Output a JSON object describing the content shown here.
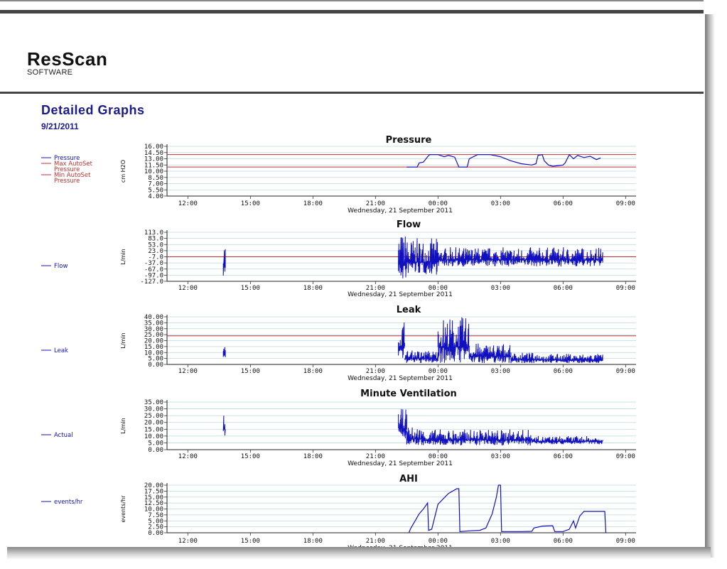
{
  "brand": {
    "name": "ResScan",
    "sub": "SOFTWARE"
  },
  "report": {
    "title": "Detailed Graphs",
    "date": "9/21/2011"
  },
  "x_axis": {
    "ticks": [
      "12:00",
      "15:00",
      "18:00",
      "21:00",
      "00:00",
      "03:00",
      "06:00",
      "09:00"
    ],
    "caption": "Wednesday, 21 September 2011"
  },
  "colors": {
    "series": "#1010c0",
    "reference": "#c03030",
    "grid": "#b8d8e0",
    "title": "#1a1a8c"
  },
  "chart_data": [
    {
      "type": "line",
      "title": "Pressure",
      "ylabel": "cm H2O",
      "ylim": [
        4.0,
        16.0
      ],
      "yticks": [
        "16.00",
        "14.50",
        "13.00",
        "11.50",
        "10.00",
        "8.50",
        "7.00",
        "5.50",
        "4.00"
      ],
      "xlim_hours": [
        11,
        28.5
      ],
      "legend": [
        {
          "label": "Pressure",
          "color": "#1010c0"
        },
        {
          "label": "Max AutoSet Pressure",
          "color": "#c03030"
        },
        {
          "label": "Min AutoSet Pressure",
          "color": "#c03030"
        }
      ],
      "reference_lines": [
        14.0,
        11.0
      ],
      "series": [
        {
          "name": "Pressure",
          "segments": [
            [
              [
                22.5,
                11.0
              ],
              [
                23.0,
                11.0
              ],
              [
                23.1,
                12.0
              ],
              [
                23.3,
                12.2
              ],
              [
                23.5,
                13.5
              ],
              [
                23.6,
                14.0
              ],
              [
                24.0,
                14.0
              ],
              [
                24.3,
                13.5
              ],
              [
                24.5,
                13.8
              ],
              [
                24.8,
                13.4
              ],
              [
                25.0,
                11.0
              ],
              [
                25.4,
                11.0
              ],
              [
                25.5,
                13.0
              ],
              [
                25.7,
                13.5
              ],
              [
                25.9,
                14.0
              ],
              [
                26.5,
                14.0
              ],
              [
                27.0,
                13.5
              ],
              [
                27.5,
                12.5
              ],
              [
                28.0,
                11.8
              ],
              [
                28.5,
                11.5
              ],
              [
                28.7,
                11.8
              ],
              [
                28.8,
                13.8
              ],
              [
                29.0,
                14.0
              ],
              [
                29.1,
                12.5
              ],
              [
                29.3,
                11.5
              ],
              [
                29.5,
                11.2
              ],
              [
                29.7,
                11.3
              ],
              [
                30.0,
                11.5
              ],
              [
                30.1,
                12.0
              ],
              [
                30.3,
                14.0
              ],
              [
                30.5,
                13.0
              ],
              [
                30.7,
                13.8
              ],
              [
                31.0,
                13.3
              ],
              [
                31.3,
                13.6
              ],
              [
                31.6,
                12.8
              ],
              [
                31.8,
                13.2
              ]
            ]
          ]
        }
      ]
    },
    {
      "type": "line",
      "title": "Flow",
      "ylabel": "L/min",
      "ylim": [
        -127.0,
        113.0
      ],
      "yticks": [
        "113.0",
        "83.0",
        "53.0",
        "23.0",
        "-7.0",
        "-37.0",
        "-67.0",
        "-97.0",
        "-127.0"
      ],
      "legend": [
        {
          "label": "Flow",
          "color": "#1010c0"
        }
      ],
      "reference_lines": [
        -7.0
      ],
      "bursts": [
        {
          "x": [
            13.7,
            13.8
          ],
          "low": -110,
          "high": 90
        },
        {
          "x": [
            22.1,
            22.5
          ],
          "low": -127,
          "high": 113
        },
        {
          "x": [
            22.5,
            24.0
          ],
          "low": -95,
          "high": 85
        },
        {
          "x": [
            24.0,
            31.9
          ],
          "low": -55,
          "high": 40
        }
      ]
    },
    {
      "type": "line",
      "title": "Leak",
      "ylabel": "L/min",
      "ylim": [
        0.0,
        40.0
      ],
      "yticks": [
        "40.00",
        "35.00",
        "30.00",
        "25.00",
        "20.00",
        "15.00",
        "10.00",
        "5.00",
        "0.00"
      ],
      "legend": [
        {
          "label": "Leak",
          "color": "#1010c0"
        }
      ],
      "reference_lines": [
        24.0
      ],
      "bursts": [
        {
          "x": [
            13.7,
            13.8
          ],
          "low": 5,
          "high": 15
        },
        {
          "x": [
            22.1,
            22.4
          ],
          "low": 2,
          "high": 40
        },
        {
          "x": [
            22.4,
            24.0
          ],
          "low": 1,
          "high": 12
        },
        {
          "x": [
            24.0,
            25.5
          ],
          "low": 1,
          "high": 40
        },
        {
          "x": [
            25.5,
            27.5
          ],
          "low": 1,
          "high": 18
        },
        {
          "x": [
            27.5,
            29.0
          ],
          "low": 1,
          "high": 10
        },
        {
          "x": [
            29.0,
            31.9
          ],
          "low": 1,
          "high": 9
        }
      ]
    },
    {
      "type": "line",
      "title": "Minute Ventilation",
      "ylabel": "L/min",
      "ylim": [
        0.0,
        35.0
      ],
      "yticks": [
        "35.00",
        "30.00",
        "25.00",
        "20.00",
        "15.00",
        "10.00",
        "5.00",
        "0.00"
      ],
      "legend": [
        {
          "label": "Actual",
          "color": "#1010c0"
        }
      ],
      "reference_lines": [],
      "bursts": [
        {
          "x": [
            13.7,
            13.8
          ],
          "low": 9,
          "high": 26
        },
        {
          "x": [
            22.1,
            22.5
          ],
          "low": 8,
          "high": 30
        },
        {
          "x": [
            22.5,
            23.2
          ],
          "low": 3,
          "high": 17
        },
        {
          "x": [
            23.2,
            28.5
          ],
          "low": 3,
          "high": 15
        },
        {
          "x": [
            28.5,
            31.9
          ],
          "low": 4,
          "high": 10
        }
      ]
    },
    {
      "type": "line",
      "title": "AHI",
      "ylabel": "events/hr",
      "ylim": [
        0.0,
        20.0
      ],
      "yticks": [
        "20.00",
        "17.50",
        "15.00",
        "12.50",
        "10.00",
        "7.50",
        "5.00",
        "2.50",
        "0.00"
      ],
      "legend": [
        {
          "label": "events/hr",
          "color": "#1010c0"
        }
      ],
      "reference_lines": [],
      "series": [
        {
          "name": "events/hr",
          "segments": [
            [
              [
                22.6,
                0.0
              ],
              [
                22.7,
                2.0
              ],
              [
                22.9,
                5.0
              ],
              [
                23.1,
                8.0
              ],
              [
                23.3,
                10.0
              ],
              [
                23.5,
                12.5
              ],
              [
                23.55,
                1.0
              ],
              [
                23.7,
                1.5
              ],
              [
                24.0,
                12.0
              ],
              [
                24.5,
                16.5
              ],
              [
                24.9,
                18.5
              ],
              [
                25.0,
                18.5
              ],
              [
                25.05,
                0.5
              ],
              [
                25.5,
                0.8
              ],
              [
                26.0,
                1.0
              ],
              [
                26.3,
                2.0
              ],
              [
                26.6,
                8.0
              ],
              [
                26.8,
                15.0
              ],
              [
                26.9,
                20.0
              ],
              [
                27.0,
                20.0
              ],
              [
                27.05,
                0.5
              ],
              [
                27.5,
                0.5
              ],
              [
                28.0,
                0.5
              ],
              [
                28.5,
                0.6
              ],
              [
                28.6,
                2.0
              ],
              [
                29.0,
                2.8
              ],
              [
                29.5,
                3.0
              ],
              [
                29.6,
                0.5
              ],
              [
                30.0,
                0.5
              ],
              [
                30.3,
                1.5
              ],
              [
                30.5,
                5.0
              ],
              [
                30.6,
                2.0
              ],
              [
                30.8,
                7.0
              ],
              [
                31.0,
                9.0
              ],
              [
                31.5,
                9.0
              ],
              [
                32.0,
                9.0
              ],
              [
                32.05,
                0.0
              ]
            ]
          ]
        }
      ]
    }
  ]
}
